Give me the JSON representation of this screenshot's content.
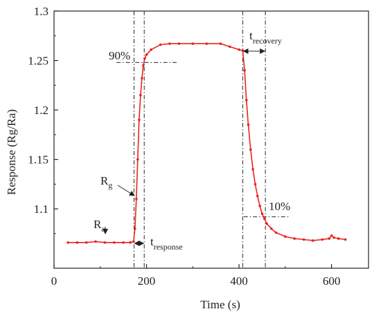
{
  "chart_data": {
    "type": "line",
    "xlabel": "Time (s)",
    "ylabel": "Response  (Rg/Ra)",
    "xlim": [
      0,
      680
    ],
    "ylim": [
      1.04,
      1.3
    ],
    "xticks": [
      0,
      200,
      400,
      600
    ],
    "yticks": [
      1.1,
      1.15,
      1.2,
      1.25,
      1.3
    ],
    "ytick_labels": [
      "1.1",
      "1.15",
      "1.2",
      "1.25",
      "1.3"
    ],
    "grid": false,
    "series_color": "#e8231f",
    "series": [
      {
        "x": [
          30,
          50,
          70,
          90,
          110,
          130,
          150,
          165,
          172,
          175,
          178,
          181,
          184,
          187,
          190,
          193,
          196,
          200,
          210,
          230,
          250,
          270,
          300,
          330,
          360,
          380,
          400,
          408,
          412,
          416,
          420,
          425,
          430,
          435,
          440,
          445,
          450,
          455,
          460,
          470,
          480,
          500,
          520,
          540,
          560,
          580,
          595,
          600,
          605,
          615,
          630
        ],
        "y": [
          1.066,
          1.066,
          1.066,
          1.067,
          1.066,
          1.066,
          1.066,
          1.066,
          1.067,
          1.08,
          1.11,
          1.15,
          1.19,
          1.215,
          1.232,
          1.245,
          1.252,
          1.256,
          1.261,
          1.266,
          1.267,
          1.267,
          1.267,
          1.267,
          1.267,
          1.264,
          1.261,
          1.26,
          1.24,
          1.21,
          1.185,
          1.16,
          1.14,
          1.125,
          1.113,
          1.103,
          1.095,
          1.09,
          1.085,
          1.08,
          1.076,
          1.072,
          1.07,
          1.069,
          1.068,
          1.069,
          1.07,
          1.073,
          1.071,
          1.07,
          1.069
        ]
      }
    ],
    "reference_lines": {
      "vertical_x": [
        173,
        195,
        408,
        457
      ],
      "horizontal": [
        {
          "y": 1.248,
          "x_from": 135,
          "x_to": 265
        },
        {
          "y": 1.092,
          "x_from": 410,
          "x_to": 510
        }
      ]
    },
    "annotations": {
      "pct_90": "90%",
      "pct_10": "10%",
      "rg_main": "R",
      "rg_sub": "g",
      "ra_main": "R",
      "ra_sub": "a",
      "t_response_main": "t",
      "t_response_sub": "response",
      "t_recovery_main": "t",
      "t_recovery_sub": "recovery"
    }
  }
}
